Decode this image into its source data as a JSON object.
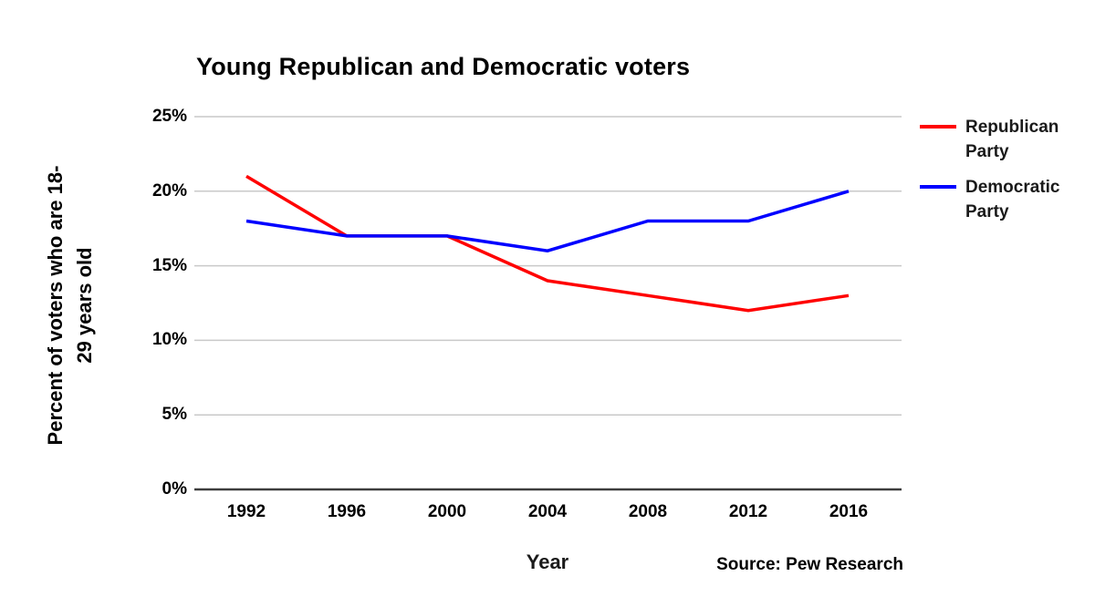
{
  "chart": {
    "title": "Young Republican and Democratic voters",
    "y_axis_title": {
      "line1": "Percent of voters who are 18-",
      "line2": "29 years old"
    },
    "x_axis_title": "Year",
    "source": "Source: Pew Research"
  },
  "chart_data": {
    "type": "line",
    "title": "Young Republican and Democratic voters",
    "xlabel": "Year",
    "ylabel": "Percent of voters who are 18-29 years old",
    "categories": [
      "1992",
      "1996",
      "2000",
      "2004",
      "2008",
      "2012",
      "2016"
    ],
    "series": [
      {
        "name": "Republican Party",
        "color": "#ff0000",
        "values": [
          21,
          17,
          17,
          14,
          13,
          12,
          13
        ]
      },
      {
        "name": "Democratic Party",
        "color": "#0000ff",
        "values": [
          18,
          17,
          17,
          16,
          18,
          18,
          20
        ]
      }
    ],
    "ylim": [
      0,
      25
    ],
    "ytick_step": 5,
    "ytick_labels": [
      "0%",
      "5%",
      "10%",
      "15%",
      "20%",
      "25%"
    ],
    "grid": true,
    "legend_position": "right",
    "annotations": [
      "Source: Pew Research"
    ],
    "colors": {
      "gridline": "#c9c9c9",
      "axis_line": "#3d3d3d",
      "text": "#000000"
    }
  }
}
